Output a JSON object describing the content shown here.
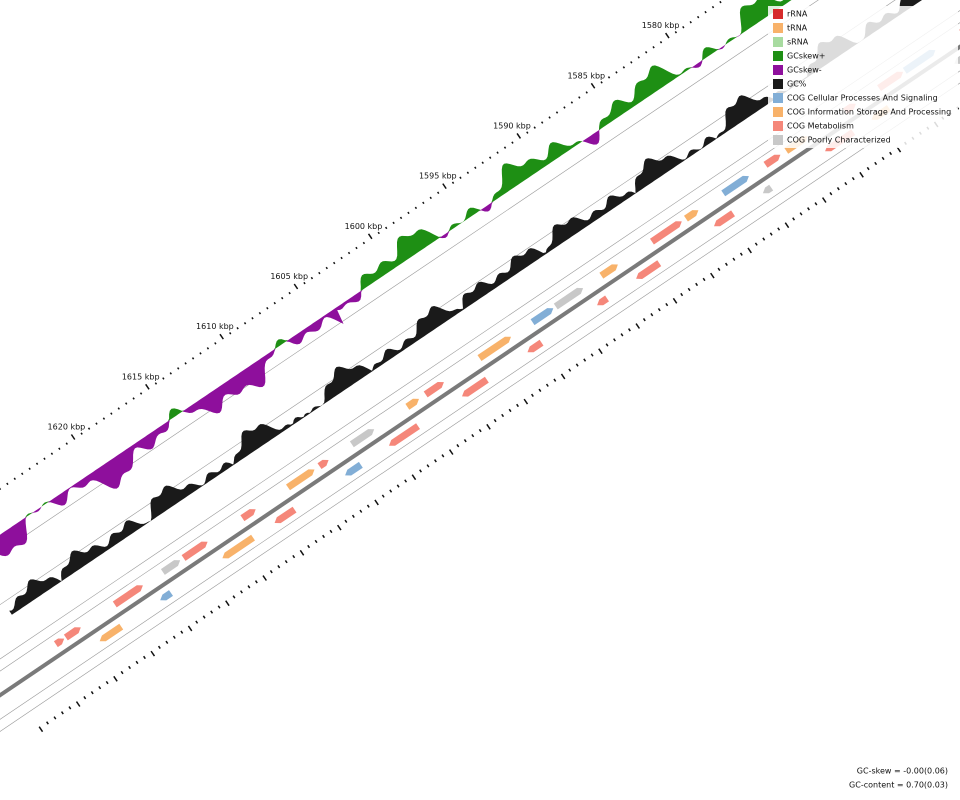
{
  "ticks": [
    "1580 kbp",
    "1585 kbp",
    "1590 kbp",
    "1595 kbp",
    "1600 kbp",
    "1605 kbp",
    "1610 kbp",
    "1615 kbp",
    "1620 kbp"
  ],
  "legend": [
    {
      "label": "rRNA",
      "color": "#d62b2b"
    },
    {
      "label": "tRNA",
      "color": "#f8b26a"
    },
    {
      "label": "sRNA",
      "color": "#a8dba0"
    },
    {
      "label": "GCskew+",
      "color": "#1e8f14"
    },
    {
      "label": "GCskew-",
      "color": "#8e0f9c"
    },
    {
      "label": "GC%",
      "color": "#1a1a1a"
    },
    {
      "label": "COG Cellular Processes And Signaling",
      "color": "#82aed6"
    },
    {
      "label": "COG Information Storage And Processing",
      "color": "#f8b26a"
    },
    {
      "label": "COG Metabolism",
      "color": "#f5877a"
    },
    {
      "label": "COG Poorly Characterized",
      "color": "#c8c8c8"
    }
  ],
  "stats": [
    "GC-skew = -0.00(0.06)",
    "GC-content = 0.70(0.03)"
  ]
}
